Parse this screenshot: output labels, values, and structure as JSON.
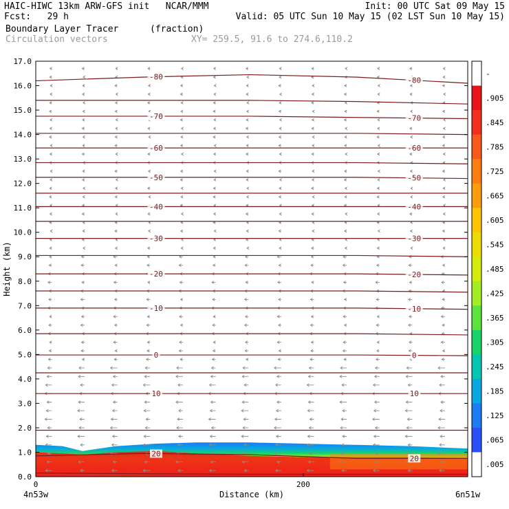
{
  "header": {
    "line1_left": "HAIC-HIWC 13km ARW-GFS init   NCAR/MMM",
    "line1_right": "Init: 00 UTC Sat 09 May 15",
    "line2_left": "Fcst:   29 h",
    "line2_right": "Valid: 05 UTC Sun 10 May 15 (02 LST Sun 10 May 15)",
    "field": "Boundary Layer Tracer",
    "field_units": "(fraction)",
    "vectors": "Circulation vectors",
    "xy": "XY= 259.5, 91.6 to 274.6,110.2"
  },
  "chart_data": {
    "type": "heatmap",
    "xlabel": "Distance (km)",
    "ylabel": "Height (km)",
    "xlim": [
      0,
      323
    ],
    "ylim": [
      0,
      17
    ],
    "x_ticks": [
      0,
      200
    ],
    "x_tick_labels": [
      "0",
      "200"
    ],
    "x_end_labels": [
      "4n53w",
      "6n51w"
    ],
    "y_ticks": [
      0,
      1,
      2,
      3,
      4,
      5,
      6,
      7,
      8,
      9,
      10,
      11,
      12,
      13,
      14,
      15,
      16,
      17
    ],
    "y_tick_labels": [
      "0.0",
      "1.0",
      "2.0",
      "3.0",
      "4.0",
      "5.0",
      "6.0",
      "7.0",
      "8.0",
      "9.0",
      "10.0",
      "11.0",
      "12.0",
      "13.0",
      "14.0",
      "15.0",
      "16.0",
      "17.0"
    ],
    "colorbar": {
      "labels": [
        "-",
        ".905",
        ".845",
        ".785",
        ".725",
        ".665",
        ".605",
        ".545",
        ".485",
        ".425",
        ".365",
        ".305",
        ".245",
        ".185",
        ".125",
        ".065",
        ".005"
      ],
      "colors": [
        "#ffffff",
        "#e8141c",
        "#f0301c",
        "#f85818",
        "#fc7c10",
        "#fc9c0c",
        "#fcc404",
        "#ecdc04",
        "#d4ec0c",
        "#a4ec24",
        "#5ce43c",
        "#18d468",
        "#04c4b4",
        "#08a8e0",
        "#1c7cf4",
        "#2c50f8",
        "#ffffff"
      ]
    },
    "temperature_contours": {
      "units": "deg C",
      "lines": [
        {
          "label": "-80",
          "heights": [
            16.2,
            16.35,
            16.45,
            16.35,
            16.1
          ]
        },
        {
          "label": "",
          "heights": [
            15.4,
            15.4,
            15.4,
            15.35,
            15.25
          ]
        },
        {
          "label": "-70",
          "heights": [
            14.75,
            14.75,
            14.75,
            14.7,
            14.65
          ]
        },
        {
          "label": "",
          "heights": [
            14.05,
            14.05,
            14.05,
            14.05,
            14.0
          ]
        },
        {
          "label": "-60",
          "heights": [
            13.45,
            13.45,
            13.45,
            13.45,
            13.45
          ]
        },
        {
          "label": "",
          "heights": [
            12.85,
            12.85,
            12.85,
            12.85,
            12.8
          ]
        },
        {
          "label": "-50",
          "heights": [
            12.25,
            12.25,
            12.25,
            12.25,
            12.2
          ]
        },
        {
          "label": "",
          "heights": [
            11.6,
            11.6,
            11.6,
            11.6,
            11.6
          ]
        },
        {
          "label": "-40",
          "heights": [
            11.05,
            11.05,
            11.05,
            11.05,
            11.05
          ]
        },
        {
          "label": "",
          "heights": [
            10.45,
            10.45,
            10.45,
            10.45,
            10.45
          ]
        },
        {
          "label": "-30",
          "heights": [
            9.75,
            9.75,
            9.75,
            9.75,
            9.75
          ]
        },
        {
          "label": "",
          "heights": [
            9.05,
            9.05,
            9.05,
            9.05,
            9.0
          ]
        },
        {
          "label": "-20",
          "heights": [
            8.3,
            8.3,
            8.3,
            8.3,
            8.25
          ]
        },
        {
          "label": "",
          "heights": [
            7.6,
            7.6,
            7.6,
            7.6,
            7.55
          ]
        },
        {
          "label": "-10",
          "heights": [
            6.9,
            6.9,
            6.9,
            6.9,
            6.85
          ]
        },
        {
          "label": "",
          "heights": [
            5.85,
            5.85,
            5.85,
            5.85,
            5.8
          ]
        },
        {
          "label": "0",
          "heights": [
            4.98,
            4.98,
            4.98,
            4.98,
            4.95
          ]
        },
        {
          "label": "",
          "heights": [
            4.25,
            4.25,
            4.25,
            4.25,
            4.25
          ]
        },
        {
          "label": "10",
          "heights": [
            3.4,
            3.4,
            3.4,
            3.4,
            3.4
          ]
        },
        {
          "label": "",
          "heights": [
            1.9,
            1.9,
            1.9,
            1.9,
            1.9
          ]
        },
        {
          "label": "20",
          "heights": [
            0.85,
            0.95,
            0.9,
            0.75,
            0.75
          ]
        },
        {
          "label": "",
          "heights": [
            0.15,
            0.12,
            0.1,
            0.1,
            0.1
          ]
        }
      ]
    },
    "tracer_layer": {
      "x": [
        0,
        20,
        35,
        60,
        90,
        120,
        160,
        200,
        240,
        280,
        323
      ],
      "top_height": [
        1.3,
        1.25,
        1.05,
        1.25,
        1.35,
        1.4,
        1.4,
        1.35,
        1.3,
        1.25,
        1.15
      ],
      "core_height": [
        1.0,
        0.95,
        0.9,
        1.0,
        1.05,
        0.95,
        0.85,
        0.8,
        0.8,
        0.8,
        0.75
      ]
    }
  }
}
